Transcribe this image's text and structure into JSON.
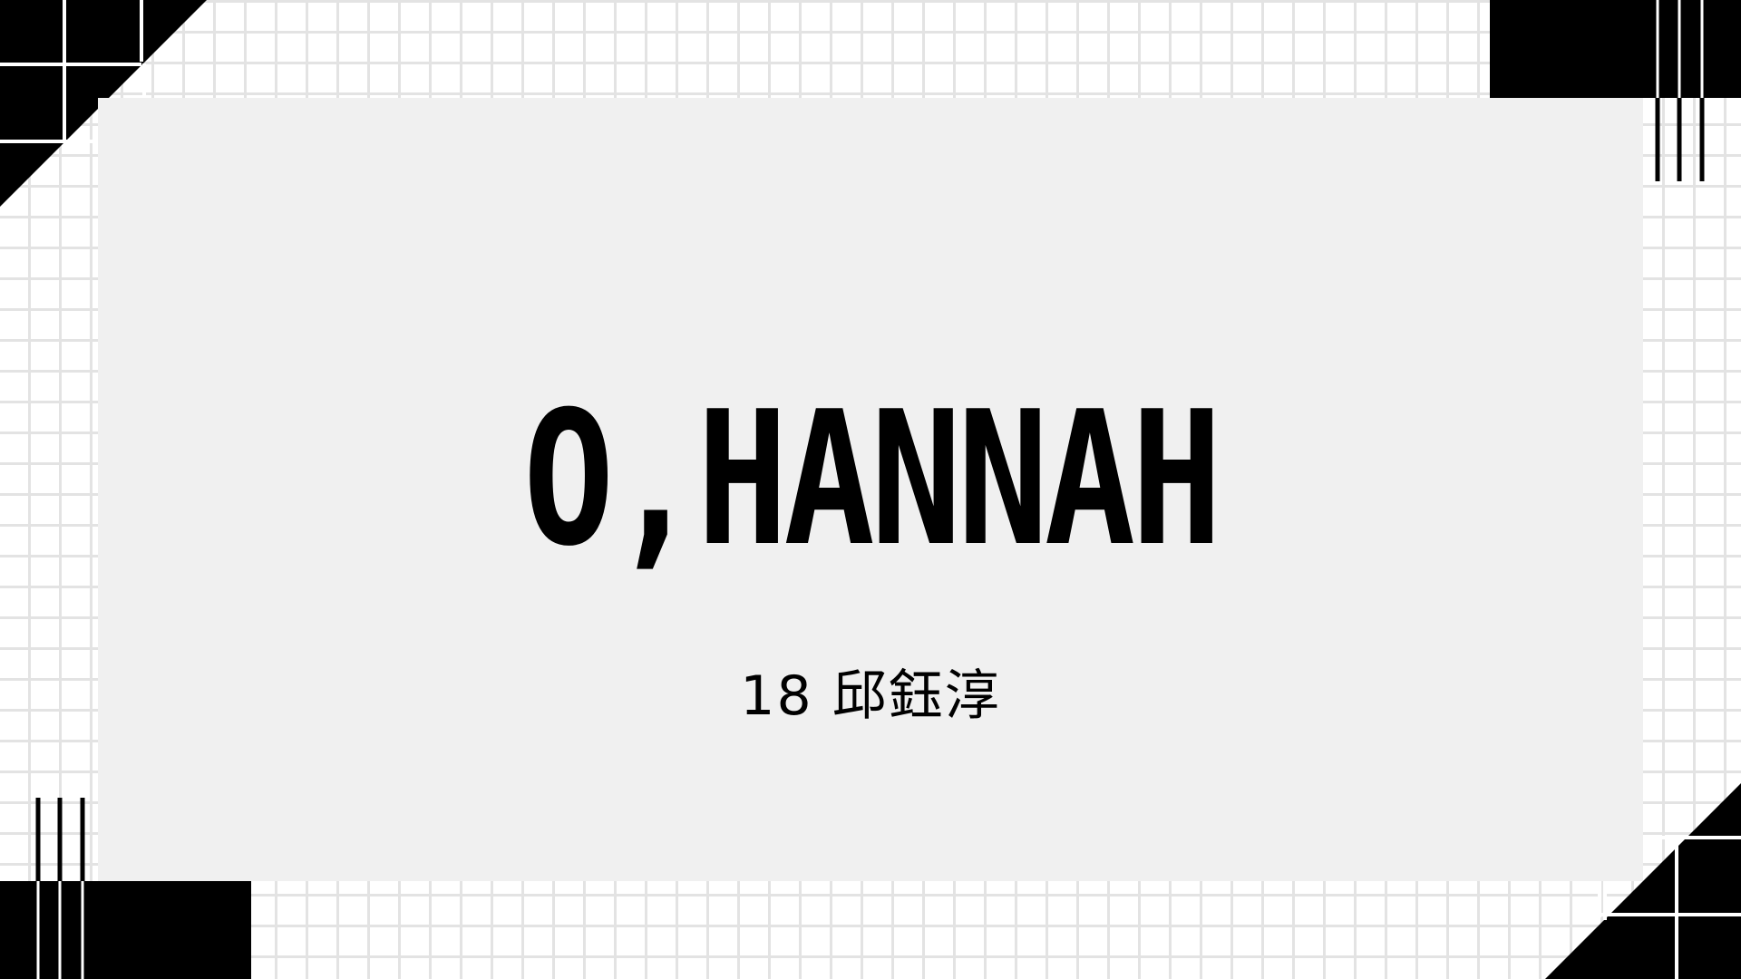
{
  "slide": {
    "title": "O,HANNAH",
    "subtitle": "18 邱鈺淳"
  },
  "colors": {
    "background": "#ffffff",
    "grid": "#e3e3e3",
    "card": "#f0f0f0",
    "accent": "#000000"
  }
}
